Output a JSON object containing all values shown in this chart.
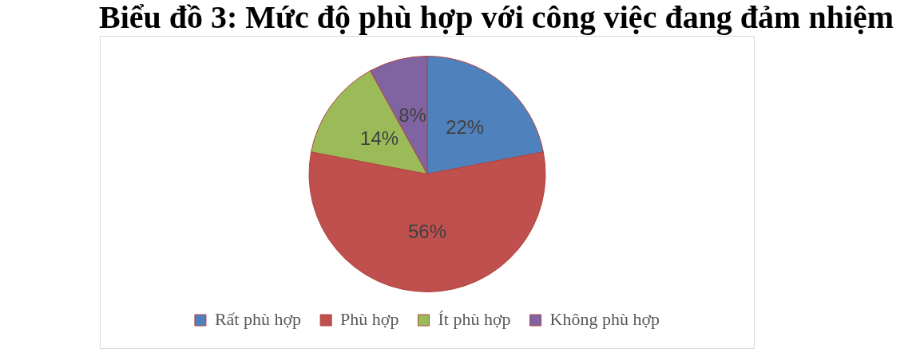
{
  "chart_data": {
    "type": "pie",
    "title": "Biểu đồ 3: Mức độ phù hợp với công việc đang đảm nhiệm",
    "categories": [
      "Rất phù hợp",
      "Phù hợp",
      "Ít phù hợp",
      "Không phù hợp"
    ],
    "values": [
      22,
      56,
      14,
      8
    ],
    "colors": [
      "#4f81bd",
      "#c0504d",
      "#9bbb59",
      "#8064a2"
    ],
    "value_labels": [
      "22%",
      "56%",
      "14%",
      "8%"
    ],
    "legend": "bottom"
  }
}
